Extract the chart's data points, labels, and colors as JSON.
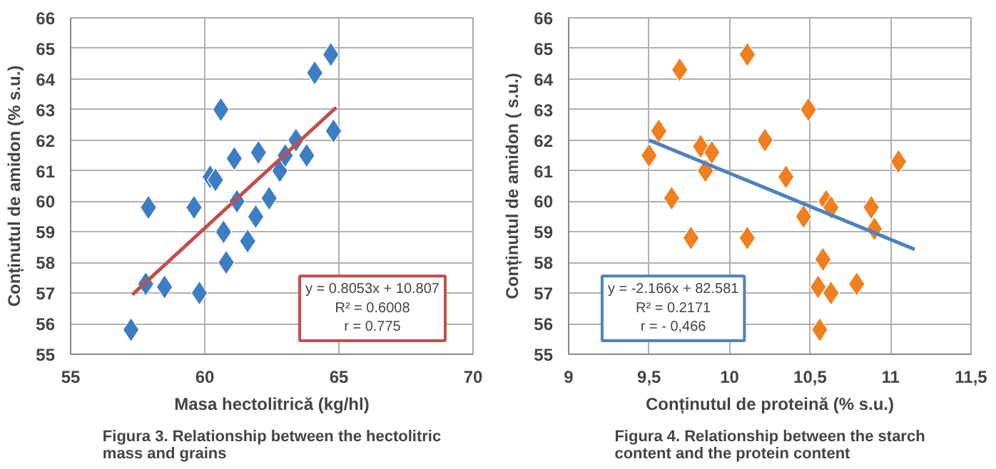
{
  "chart_data": [
    {
      "type": "scatter",
      "xlabel": "Masa hectolitrică (kg/hl)",
      "ylabel": "Conținutul de amidon (% s.u.)",
      "xlim": [
        55,
        70
      ],
      "xticks": [
        55,
        60,
        65,
        70
      ],
      "ylim": [
        55,
        66
      ],
      "yticks": [
        55,
        56,
        57,
        58,
        59,
        60,
        61,
        62,
        63,
        64,
        65,
        66
      ],
      "grid": true,
      "marker": "diamond",
      "series": [
        {
          "color": "#3c7dc4",
          "x": [
            57.25,
            57.9,
            57.8,
            58.5,
            59.8,
            59.6,
            60.6,
            60.2,
            60.4,
            61.1,
            60.7,
            60.8,
            61.2,
            61.6,
            61.9,
            62.0,
            62.4,
            62.8,
            63.0,
            63.4,
            63.8,
            64.1,
            64.7,
            64.8
          ],
          "values": [
            55.8,
            59.8,
            57.3,
            57.2,
            57.0,
            59.8,
            63.0,
            60.8,
            60.7,
            61.4,
            59.0,
            58.0,
            60.0,
            58.7,
            59.5,
            61.6,
            60.1,
            61.0,
            61.5,
            62.0,
            61.5,
            64.2,
            64.8,
            62.3
          ]
        },
        {
          "type": "line",
          "marker": "none",
          "color": "#c0504d",
          "x": [
            57.3,
            64.9
          ],
          "values": [
            56.95,
            63.07
          ]
        }
      ],
      "annotations": [
        "y = 0.8053x + 10.807\nR² = 0.6008\nr = 0.775",
        "Figura 3. Relationship between the hectolitric mass and grains"
      ]
    },
    {
      "type": "scatter",
      "xlabel": "Conținutul de proteină (% s.u.)",
      "ylabel": "Conținutul de amidon ( s.u.)",
      "xlim": [
        9,
        11.5
      ],
      "xticks": [
        9,
        {
          "value": 9.5,
          "label": "9,5"
        },
        10,
        {
          "value": 10.5,
          "label": "10,5"
        },
        11,
        {
          "value": 11.5,
          "label": "11,5"
        }
      ],
      "ylim": [
        55,
        66
      ],
      "yticks": [
        55,
        56,
        57,
        58,
        59,
        60,
        61,
        62,
        63,
        64,
        65,
        66
      ],
      "grid": true,
      "marker": "diamond",
      "series": [
        {
          "color": "#f07f1f",
          "x": [
            9.5,
            9.56,
            9.69,
            9.64,
            9.76,
            9.82,
            9.89,
            9.85,
            10.11,
            10.11,
            10.22,
            10.35,
            10.49,
            10.46,
            10.6,
            10.63,
            10.58,
            10.55,
            10.63,
            10.79,
            10.56,
            10.88,
            10.9,
            11.05
          ],
          "values": [
            61.5,
            62.3,
            64.3,
            60.1,
            58.8,
            61.8,
            61.6,
            61.0,
            64.8,
            58.8,
            62.0,
            60.8,
            63.0,
            59.5,
            60.0,
            59.8,
            58.1,
            57.2,
            57.0,
            57.3,
            55.8,
            59.8,
            59.1,
            61.3
          ]
        },
        {
          "type": "line",
          "marker": "none",
          "color": "#4f81bd",
          "x": [
            9.5,
            11.15
          ],
          "values": [
            62.0,
            58.43
          ]
        }
      ],
      "annotations": [
        "y = -2.166x + 82.581\nR² = 0.2171\nr = - 0,466",
        "Figura 4. Relationship between the starch content and the protein content"
      ]
    }
  ]
}
